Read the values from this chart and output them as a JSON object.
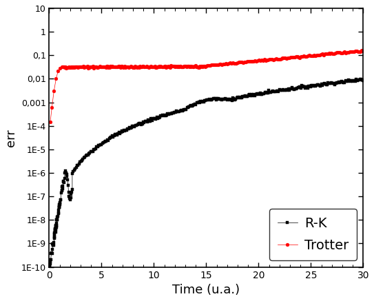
{
  "title": "",
  "xlabel": "Time (u.a.)",
  "ylabel": "err",
  "xlim": [
    0,
    30
  ],
  "rk_color": "black",
  "trotter_color": "red",
  "rk_label": "R-K",
  "trotter_label": "Trotter",
  "legend_loc": "lower right",
  "background_color": "white",
  "ytick_labels": [
    "1E-10",
    "1E-9",
    "1E-8",
    "1E-7",
    "1E-6",
    "1E-5",
    "1E-4",
    "0,001",
    "0,01",
    "0,1",
    "1",
    "10"
  ],
  "ytick_values": [
    1e-10,
    1e-09,
    1e-08,
    1e-07,
    1e-06,
    1e-05,
    0.0001,
    0.001,
    0.01,
    0.1,
    1.0,
    10.0
  ],
  "xtick_values": [
    0,
    5,
    10,
    15,
    20,
    25,
    30
  ]
}
